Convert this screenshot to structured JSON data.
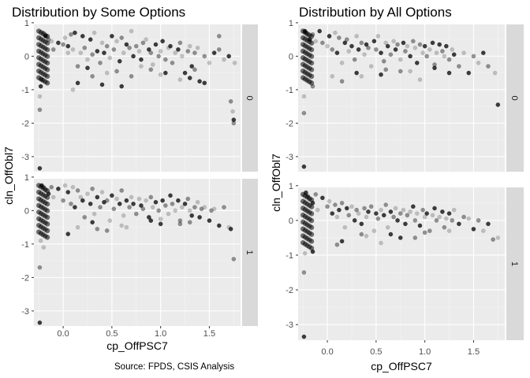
{
  "figure": {
    "caption": "Source: FPDS, CSIS Analysis"
  },
  "chart_data": [
    {
      "type": "scatter",
      "title": "Distribution by Some Options",
      "xlabel": "cp_OffPSC7",
      "ylabel": "cln_OffObl7",
      "xlim": [
        -0.3,
        1.82
      ],
      "ylim": [
        -3.45,
        0.95
      ],
      "x_ticks": [
        0,
        0.5,
        1,
        1.5
      ],
      "x_tick_labels": [
        "0.0",
        "0.5",
        "1.0",
        "1.5"
      ],
      "y_ticks": [
        1,
        0,
        -1,
        -2,
        -3
      ],
      "y_tick_labels": [
        "1",
        "0",
        "-1",
        "-2",
        "-3"
      ],
      "grid": true,
      "facet_strip": "right",
      "panels": [
        {
          "strip_label": "0",
          "x": [
            -0.24,
            -0.24,
            -0.24,
            -0.23,
            -0.22,
            -0.2,
            -0.18,
            -0.15,
            -0.12,
            -0.05,
            0.0,
            0.02,
            0.05,
            0.08,
            0.1,
            0.12,
            0.15,
            0.18,
            0.2,
            0.22,
            0.25,
            0.28,
            0.3,
            0.32,
            0.35,
            0.38,
            0.4,
            0.42,
            0.45,
            0.48,
            0.5,
            0.52,
            0.55,
            0.58,
            0.6,
            0.62,
            0.65,
            0.68,
            0.7,
            0.72,
            0.75,
            0.78,
            0.8,
            0.82,
            0.85,
            0.88,
            0.9,
            0.92,
            0.95,
            0.98,
            1.0,
            1.02,
            1.05,
            1.08,
            1.1,
            1.12,
            1.15,
            1.18,
            1.2,
            1.22,
            1.25,
            1.28,
            1.3,
            1.32,
            1.35,
            1.38,
            1.4,
            1.45,
            1.5,
            1.55,
            1.6,
            1.65,
            1.7,
            1.72,
            1.74,
            1.75,
            1.75,
            1.76,
            0.15,
            0.3,
            0.45,
            0.6,
            0.9,
            1.2,
            1.45,
            -0.1,
            0.05,
            0.25,
            0.55,
            0.8,
            1.05,
            1.35,
            0.1,
            0.4,
            0.7,
            1.0,
            1.3,
            1.6
          ],
          "y": [
            -3.35,
            -1.6,
            -1.2,
            -0.9,
            -0.7,
            0.7,
            0.6,
            0.5,
            0.45,
            0.4,
            0.35,
            0.55,
            0.3,
            0.65,
            0.2,
            0.7,
            -0.3,
            0.1,
            0.6,
            0.25,
            -0.1,
            0.5,
            0.05,
            0.7,
            0.15,
            -0.2,
            0.4,
            0.1,
            0.3,
            -0.05,
            0.6,
            0.2,
            0.45,
            -0.15,
            0.55,
            0.1,
            0.35,
            0.25,
            0.75,
            0.0,
            0.3,
            0.15,
            -0.1,
            0.4,
            0.5,
            0.2,
            0.1,
            -0.25,
            0.35,
            0.0,
            0.15,
            0.45,
            -0.1,
            0.25,
            0.3,
            -0.2,
            0.1,
            0.2,
            0.4,
            0.0,
            -0.5,
            0.15,
            0.3,
            -0.3,
            0.1,
            0.25,
            -0.75,
            0.0,
            -0.2,
            0.1,
            0.2,
            -0.1,
            0.0,
            -1.35,
            -1.65,
            -1.9,
            -2.0,
            -0.2,
            -0.8,
            -0.6,
            -0.5,
            -0.9,
            -0.4,
            -0.7,
            -0.8,
            0.2,
            0.1,
            -0.35,
            -0.45,
            -0.3,
            -0.5,
            -0.4,
            -1.0,
            -0.85,
            -0.6,
            -0.55,
            -0.65,
            0.6
          ]
        },
        {
          "strip_label": "1",
          "x": [
            -0.24,
            -0.24,
            -0.23,
            -0.22,
            -0.2,
            -0.18,
            -0.15,
            -0.12,
            -0.1,
            -0.05,
            0.0,
            0.02,
            0.05,
            0.08,
            0.1,
            0.12,
            0.15,
            0.18,
            0.2,
            0.22,
            0.25,
            0.28,
            0.3,
            0.32,
            0.35,
            0.38,
            0.4,
            0.42,
            0.45,
            0.48,
            0.5,
            0.52,
            0.55,
            0.58,
            0.6,
            0.62,
            0.65,
            0.68,
            0.7,
            0.72,
            0.75,
            0.78,
            0.8,
            0.82,
            0.85,
            0.88,
            0.9,
            0.92,
            0.95,
            0.98,
            1.0,
            1.02,
            1.05,
            1.08,
            1.1,
            1.12,
            1.15,
            1.18,
            1.2,
            1.22,
            1.25,
            1.28,
            1.3,
            1.32,
            1.35,
            1.38,
            1.4,
            1.42,
            1.45,
            1.5,
            1.52,
            1.55,
            1.6,
            1.65,
            1.7,
            1.72,
            1.75,
            0.15,
            0.3,
            0.45,
            0.6,
            0.9,
            1.2,
            -0.2,
            0.05,
            0.35,
            0.65,
            1.0,
            1.3
          ],
          "y": [
            -3.35,
            -1.7,
            -0.9,
            0.75,
            0.7,
            0.6,
            0.5,
            0.7,
            0.4,
            0.65,
            0.3,
            0.75,
            0.55,
            0.2,
            0.7,
            0.1,
            0.6,
            0.4,
            0.3,
            -0.2,
            0.5,
            0.2,
            0.65,
            -0.1,
            0.4,
            0.1,
            0.55,
            0.25,
            0.3,
            -0.3,
            0.45,
            0.05,
            0.35,
            0.2,
            0.6,
            -0.15,
            0.3,
            0.1,
            0.4,
            0.2,
            -0.1,
            0.35,
            0.15,
            0.05,
            0.3,
            -0.2,
            0.4,
            0.1,
            0.25,
            0.0,
            -0.25,
            0.3,
            0.15,
            -0.1,
            0.45,
            0.2,
            0.0,
            0.3,
            -0.3,
            0.1,
            0.2,
            0.35,
            0.0,
            -0.15,
            0.1,
            0.25,
            -0.2,
            0.05,
            0.1,
            -0.3,
            0.0,
            0.05,
            -0.45,
            0.1,
            -0.5,
            -0.55,
            -1.45,
            -0.5,
            -0.35,
            -0.6,
            -0.45,
            -0.3,
            -0.4,
            -1.1,
            -0.7,
            -0.55,
            -0.5,
            -0.4,
            -0.35
          ]
        }
      ]
    },
    {
      "type": "scatter",
      "title": "Distribution by All Options",
      "xlabel": "cp_OffPSC7",
      "ylabel": "cln_OffObl7",
      "xlim": [
        -0.3,
        1.82
      ],
      "ylim": [
        -3.45,
        0.95
      ],
      "x_ticks": [
        0,
        0.5,
        1,
        1.5
      ],
      "x_tick_labels": [
        "0.0",
        "0.5",
        "1.0",
        "1.5"
      ],
      "y_ticks": [
        1,
        0,
        -1,
        -2,
        -3
      ],
      "y_tick_labels": [
        "1",
        "0",
        "-1",
        "-2",
        "-3"
      ],
      "grid": true,
      "facet_strip": "right",
      "panels": [
        {
          "strip_label": "0",
          "x": [
            -0.24,
            -0.24,
            -0.24,
            -0.23,
            -0.22,
            -0.2,
            -0.18,
            -0.15,
            -0.12,
            -0.08,
            -0.05,
            0.0,
            0.02,
            0.05,
            0.08,
            0.1,
            0.12,
            0.15,
            0.18,
            0.2,
            0.22,
            0.25,
            0.28,
            0.3,
            0.32,
            0.35,
            0.38,
            0.4,
            0.42,
            0.45,
            0.48,
            0.5,
            0.52,
            0.55,
            0.58,
            0.6,
            0.62,
            0.65,
            0.68,
            0.7,
            0.72,
            0.75,
            0.78,
            0.8,
            0.82,
            0.85,
            0.88,
            0.9,
            0.92,
            0.95,
            0.98,
            1.0,
            1.02,
            1.05,
            1.08,
            1.1,
            1.12,
            1.15,
            1.18,
            1.2,
            1.22,
            1.25,
            1.28,
            1.3,
            1.35,
            1.4,
            1.45,
            1.5,
            1.55,
            1.6,
            1.65,
            1.72,
            1.75,
            0.15,
            0.35,
            0.55,
            0.75,
            0.95,
            1.25,
            -0.15,
            0.05,
            0.3,
            0.6,
            0.85,
            1.1
          ],
          "y": [
            -3.3,
            -1.7,
            -1.2,
            0.75,
            0.7,
            0.6,
            0.5,
            0.65,
            0.45,
            0.75,
            0.4,
            0.3,
            0.6,
            0.2,
            0.7,
            0.1,
            0.55,
            -0.2,
            0.4,
            0.5,
            0.15,
            0.3,
            -0.1,
            0.6,
            0.2,
            0.4,
            0.05,
            0.35,
            0.25,
            -0.3,
            0.45,
            0.2,
            0.6,
            0.1,
            -0.15,
            0.4,
            0.3,
            0.05,
            0.45,
            0.2,
            0.35,
            -0.1,
            0.4,
            0.15,
            0.3,
            0.0,
            0.45,
            0.25,
            -0.2,
            0.35,
            0.1,
            0.3,
            0.0,
            0.2,
            0.4,
            -0.25,
            0.1,
            0.35,
            0.15,
            0.0,
            0.3,
            -0.1,
            0.2,
            0.05,
            -0.3,
            0.1,
            -0.5,
            0.0,
            -0.2,
            0.1,
            -0.3,
            -0.5,
            -1.45,
            -0.75,
            -0.6,
            -0.55,
            -0.45,
            -0.7,
            -0.5,
            -0.9,
            -0.6,
            -0.5,
            -0.4,
            -0.45,
            -0.35
          ]
        },
        {
          "strip_label": "1",
          "x": [
            -0.24,
            -0.24,
            -0.23,
            -0.22,
            -0.2,
            -0.18,
            -0.15,
            -0.12,
            -0.1,
            -0.05,
            0.0,
            0.02,
            0.05,
            0.08,
            0.1,
            0.12,
            0.15,
            0.18,
            0.2,
            0.22,
            0.25,
            0.28,
            0.3,
            0.32,
            0.35,
            0.38,
            0.4,
            0.42,
            0.45,
            0.48,
            0.5,
            0.52,
            0.55,
            0.58,
            0.6,
            0.62,
            0.65,
            0.68,
            0.7,
            0.72,
            0.75,
            0.78,
            0.8,
            0.82,
            0.85,
            0.88,
            0.9,
            0.92,
            0.95,
            0.98,
            1.0,
            1.02,
            1.05,
            1.08,
            1.1,
            1.12,
            1.15,
            1.18,
            1.2,
            1.22,
            1.25,
            1.28,
            1.3,
            1.35,
            1.4,
            1.45,
            1.5,
            1.55,
            1.6,
            1.65,
            1.7,
            1.75,
            0.15,
            0.35,
            0.55,
            0.75,
            1.0,
            1.25,
            -0.15,
            0.1,
            0.4,
            0.65,
            0.9
          ],
          "y": [
            -3.35,
            -1.5,
            -0.95,
            0.8,
            0.7,
            0.6,
            0.5,
            0.75,
            0.3,
            0.65,
            0.4,
            0.55,
            0.2,
            0.45,
            0.1,
            0.3,
            0.5,
            -0.2,
            0.35,
            0.15,
            0.4,
            0.0,
            0.3,
            0.2,
            -0.1,
            0.35,
            0.1,
            0.25,
            0.4,
            -0.3,
            0.2,
            0.05,
            0.3,
            0.15,
            0.45,
            -0.2,
            0.25,
            0.1,
            0.35,
            0.0,
            0.2,
            0.3,
            -0.1,
            0.15,
            0.25,
            0.4,
            0.0,
            0.2,
            -0.15,
            0.3,
            0.1,
            0.2,
            -0.3,
            0.15,
            0.35,
            0.0,
            0.1,
            0.25,
            -0.2,
            0.05,
            0.2,
            0.0,
            0.3,
            -0.1,
            0.1,
            0.05,
            -0.25,
            0.0,
            -0.3,
            -0.1,
            -0.55,
            -0.5,
            -0.6,
            -0.4,
            -0.65,
            -0.5,
            -0.35,
            -0.3,
            -0.9,
            -0.7,
            -0.45,
            -0.4,
            -0.5
          ]
        }
      ]
    }
  ]
}
